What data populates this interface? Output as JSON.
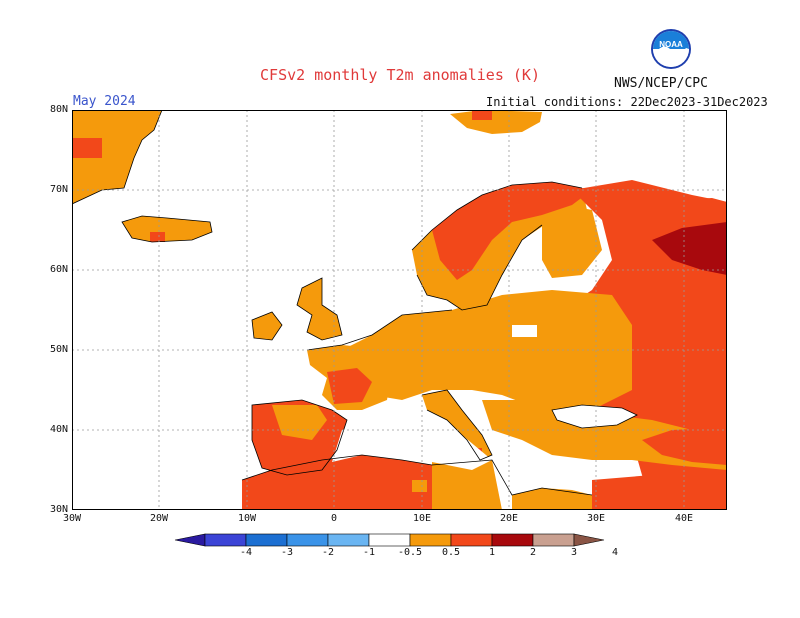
{
  "header": {
    "title": "CFSv2 monthly T2m anomalies (K)",
    "agency": "NWS/NCEP/CPC",
    "month": "May 2024",
    "initial_conditions": "Initial conditions: 22Dec2023-31Dec2023",
    "logo_text": "NOAA"
  },
  "axes": {
    "lat_labels": [
      "80N",
      "70N",
      "60N",
      "50N",
      "40N",
      "30N"
    ],
    "lon_labels": [
      "30W",
      "20W",
      "10W",
      "0",
      "10E",
      "20E",
      "30E",
      "40E"
    ]
  },
  "legend": {
    "tick_labels": [
      "-4",
      "-3",
      "-2",
      "-1",
      "-0.5",
      "0.5",
      "1",
      "2",
      "3",
      "4"
    ],
    "colors": [
      "#2a1aa0",
      "#3b44d6",
      "#1c6fd2",
      "#3a93e8",
      "#6ab5f2",
      "#ffffff",
      "#f59a0c",
      "#f2481a",
      "#a8090d",
      "#c9a090",
      "#8a5545"
    ]
  },
  "map_colors": {
    "ocean": "#ffffff",
    "anomaly_0_5_1": "#f59a0c",
    "anomaly_1_2": "#f2481a",
    "anomaly_2_3": "#a8090d",
    "grid": "#9a9a9a",
    "coast": "#000000"
  }
}
